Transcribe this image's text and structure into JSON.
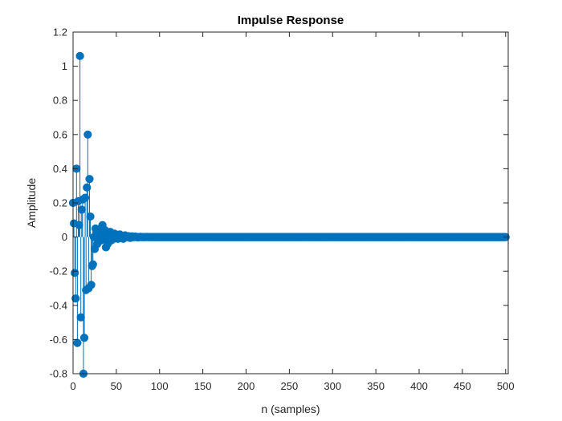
{
  "chart_data": {
    "type": "stem",
    "title": "Impulse Response",
    "xlabel": "n (samples)",
    "ylabel": "Amplitude",
    "xlim": [
      0,
      503
    ],
    "ylim": [
      -0.8,
      1.2
    ],
    "xticks": [
      0,
      50,
      100,
      150,
      200,
      250,
      300,
      350,
      400,
      450,
      500
    ],
    "yticks": [
      -0.8,
      -0.6,
      -0.4,
      -0.2,
      0,
      0.2,
      0.4,
      0.6,
      0.8,
      1,
      1.2
    ],
    "xtick_labels": [
      "0",
      "50",
      "100",
      "150",
      "200",
      "250",
      "300",
      "350",
      "400",
      "450",
      "500"
    ],
    "ytick_labels": [
      "-0.8",
      "-0.6",
      "-0.4",
      "-0.2",
      "0",
      "0.2",
      "0.4",
      "0.6",
      "0.8",
      "1",
      "1.2"
    ],
    "grid": false,
    "color": "#0072BD",
    "n_samples": 501,
    "series": [
      {
        "x": [
          0,
          1,
          2,
          3,
          4,
          5,
          6,
          7,
          8,
          9,
          10,
          11,
          12,
          13,
          14,
          15,
          16,
          17,
          18,
          19,
          20,
          21,
          22,
          23,
          24,
          25,
          26,
          27,
          28,
          29,
          30,
          31,
          32,
          33,
          34,
          35,
          36,
          37,
          38,
          39,
          40,
          41,
          42,
          43,
          44,
          45,
          46,
          47,
          48,
          49,
          50,
          52,
          54,
          56,
          58,
          60,
          62,
          64,
          66,
          68,
          70,
          72,
          75,
          78,
          80,
          85,
          90
        ],
        "y": [
          0.2,
          0.08,
          -0.21,
          -0.36,
          0.4,
          -0.62,
          0.21,
          0.07,
          1.06,
          -0.47,
          0.16,
          0.22,
          -0.8,
          -0.59,
          0.23,
          -0.31,
          0.29,
          0.6,
          -0.3,
          0.34,
          0.12,
          -0.28,
          -0.17,
          -0.16,
          0.0,
          -0.07,
          0.05,
          0.03,
          -0.04,
          0.02,
          0.04,
          0.01,
          -0.02,
          0.03,
          0.07,
          0.02,
          -0.01,
          0.04,
          -0.06,
          0.01,
          -0.04,
          0.02,
          0.0,
          0.03,
          -0.02,
          0.02,
          0.01,
          -0.01,
          0.02,
          0.0,
          0.01,
          -0.01,
          0.015,
          0.0,
          -0.01,
          0.01,
          0.0,
          0.005,
          -0.005,
          0.004,
          0.0,
          0.003,
          -0.002,
          0.002,
          0.0,
          0.001,
          0.0
        ]
      }
    ]
  }
}
